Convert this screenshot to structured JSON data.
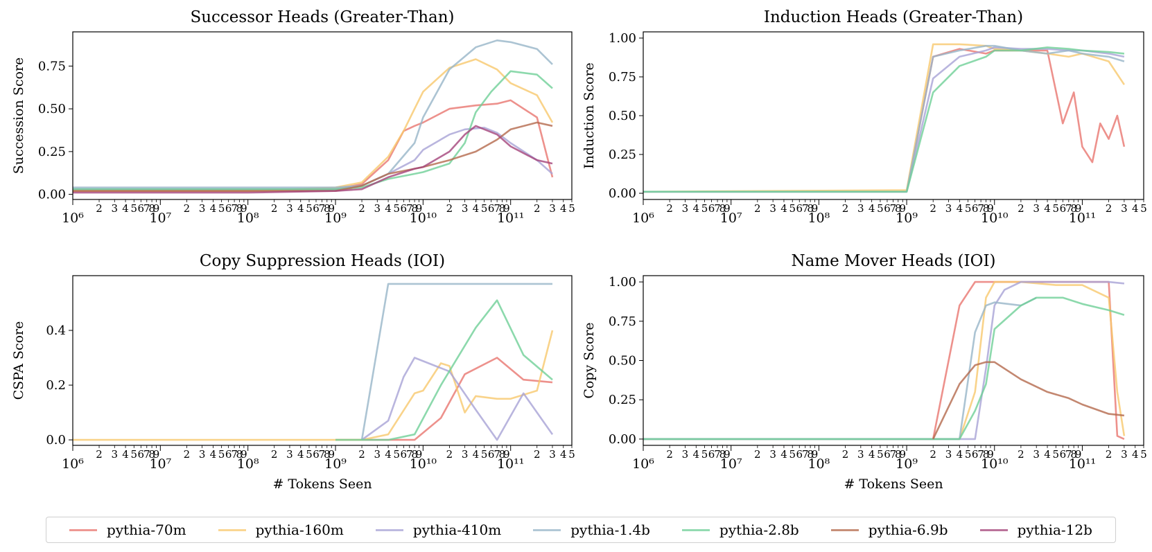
{
  "legend": {
    "items": [
      {
        "label": "pythia-70m",
        "color": "#e8766f"
      },
      {
        "label": "pythia-160m",
        "color": "#f8c86d"
      },
      {
        "label": "pythia-410m",
        "color": "#a7a3d6"
      },
      {
        "label": "pythia-1.4b",
        "color": "#97b5c8"
      },
      {
        "label": "pythia-2.8b",
        "color": "#6fcf97"
      },
      {
        "label": "pythia-6.9b",
        "color": "#b4694c"
      },
      {
        "label": "pythia-12b",
        "color": "#a4447a"
      }
    ]
  },
  "chart_data": [
    {
      "type": "line",
      "title": "Successor Heads (Greater-Than)",
      "xlabel": "",
      "ylabel": "Succession Score",
      "xscale": "log",
      "xlim": [
        1000000.0,
        500000000000.0
      ],
      "ylim": [
        -0.03,
        0.95
      ],
      "yticks": [
        0.0,
        0.25,
        0.5,
        0.75
      ],
      "ytick_labels": [
        "0.00",
        "0.25",
        "0.50",
        "0.75"
      ],
      "series": [
        {
          "name": "pythia-70m",
          "x": [
            1000000.0,
            100000000.0,
            1000000000.0,
            2000000000.0,
            4000000000.0,
            6000000000.0,
            8000000000.0,
            10000000000.0,
            20000000000.0,
            40000000000.0,
            70000000000.0,
            100000000000.0,
            200000000000.0,
            300000000000.0
          ],
          "y": [
            0.02,
            0.02,
            0.03,
            0.06,
            0.2,
            0.37,
            0.4,
            0.42,
            0.5,
            0.52,
            0.53,
            0.55,
            0.45,
            0.1
          ]
        },
        {
          "name": "pythia-160m",
          "x": [
            1000000.0,
            100000000.0,
            1000000000.0,
            2000000000.0,
            4000000000.0,
            6000000000.0,
            8000000000.0,
            10000000000.0,
            20000000000.0,
            40000000000.0,
            70000000000.0,
            100000000000.0,
            200000000000.0,
            300000000000.0
          ],
          "y": [
            0.02,
            0.02,
            0.04,
            0.07,
            0.22,
            0.37,
            0.5,
            0.6,
            0.74,
            0.79,
            0.73,
            0.65,
            0.58,
            0.42
          ]
        },
        {
          "name": "pythia-410m",
          "x": [
            1000000.0,
            100000000.0,
            1000000000.0,
            2000000000.0,
            4000000000.0,
            8000000000.0,
            10000000000.0,
            20000000000.0,
            30000000000.0,
            50000000000.0,
            70000000000.0,
            100000000000.0,
            200000000000.0,
            300000000000.0
          ],
          "y": [
            0.03,
            0.03,
            0.03,
            0.05,
            0.12,
            0.2,
            0.26,
            0.35,
            0.38,
            0.39,
            0.36,
            0.3,
            0.2,
            0.12
          ]
        },
        {
          "name": "pythia-1.4b",
          "x": [
            1000000.0,
            100000000.0,
            1000000000.0,
            2000000000.0,
            4000000000.0,
            8000000000.0,
            10000000000.0,
            20000000000.0,
            40000000000.0,
            70000000000.0,
            100000000000.0,
            200000000000.0,
            300000000000.0
          ],
          "y": [
            0.04,
            0.04,
            0.04,
            0.05,
            0.12,
            0.3,
            0.45,
            0.73,
            0.86,
            0.9,
            0.89,
            0.85,
            0.76
          ]
        },
        {
          "name": "pythia-2.8b",
          "x": [
            1000000.0,
            100000000.0,
            1000000000.0,
            2000000000.0,
            4000000000.0,
            8000000000.0,
            10000000000.0,
            20000000000.0,
            30000000000.0,
            40000000000.0,
            60000000000.0,
            100000000000.0,
            200000000000.0,
            300000000000.0
          ],
          "y": [
            0.03,
            0.03,
            0.03,
            0.04,
            0.09,
            0.12,
            0.13,
            0.18,
            0.3,
            0.48,
            0.6,
            0.72,
            0.7,
            0.62
          ]
        },
        {
          "name": "pythia-6.9b",
          "x": [
            1000000.0,
            100000000.0,
            1000000000.0,
            2000000000.0,
            4000000000.0,
            8000000000.0,
            10000000000.0,
            20000000000.0,
            40000000000.0,
            70000000000.0,
            100000000000.0,
            200000000000.0,
            300000000000.0
          ],
          "y": [
            0.02,
            0.02,
            0.02,
            0.05,
            0.12,
            0.15,
            0.16,
            0.2,
            0.25,
            0.32,
            0.38,
            0.42,
            0.4
          ]
        },
        {
          "name": "pythia-12b",
          "x": [
            1000000.0,
            100000000.0,
            1000000000.0,
            2000000000.0,
            4000000000.0,
            8000000000.0,
            10000000000.0,
            20000000000.0,
            30000000000.0,
            40000000000.0,
            70000000000.0,
            100000000000.0,
            200000000000.0,
            300000000000.0
          ],
          "y": [
            0.01,
            0.01,
            0.02,
            0.03,
            0.1,
            0.15,
            0.16,
            0.25,
            0.35,
            0.4,
            0.35,
            0.28,
            0.2,
            0.18
          ]
        }
      ]
    },
    {
      "type": "line",
      "title": "Induction Heads (Greater-Than)",
      "xlabel": "",
      "ylabel": "Induction Score",
      "xscale": "log",
      "xlim": [
        1000000.0,
        500000000000.0
      ],
      "ylim": [
        -0.04,
        1.04
      ],
      "yticks": [
        0.0,
        0.25,
        0.5,
        0.75,
        1.0
      ],
      "ytick_labels": [
        "0.00",
        "0.25",
        "0.50",
        "0.75",
        "1.00"
      ],
      "series": [
        {
          "name": "pythia-70m",
          "x": [
            1000000.0,
            1000000000.0,
            2000000000.0,
            4000000000.0,
            8000000000.0,
            10000000000.0,
            20000000000.0,
            40000000000.0,
            60000000000.0,
            80000000000.0,
            100000000000.0,
            130000000000.0,
            160000000000.0,
            200000000000.0,
            250000000000.0,
            300000000000.0
          ],
          "y": [
            0.01,
            0.01,
            0.88,
            0.93,
            0.9,
            0.92,
            0.92,
            0.92,
            0.45,
            0.65,
            0.3,
            0.2,
            0.45,
            0.35,
            0.5,
            0.3
          ]
        },
        {
          "name": "pythia-160m",
          "x": [
            1000000.0,
            1000000000.0,
            2000000000.0,
            4000000000.0,
            8000000000.0,
            10000000000.0,
            20000000000.0,
            40000000000.0,
            70000000000.0,
            100000000000.0,
            200000000000.0,
            300000000000.0
          ],
          "y": [
            0.01,
            0.02,
            0.96,
            0.96,
            0.95,
            0.93,
            0.92,
            0.9,
            0.88,
            0.9,
            0.85,
            0.7
          ]
        },
        {
          "name": "pythia-410m",
          "x": [
            1000000.0,
            1000000000.0,
            2000000000.0,
            4000000000.0,
            8000000000.0,
            10000000000.0,
            20000000000.0,
            40000000000.0,
            70000000000.0,
            100000000000.0,
            200000000000.0,
            300000000000.0
          ],
          "y": [
            0.01,
            0.01,
            0.74,
            0.88,
            0.92,
            0.94,
            0.93,
            0.93,
            0.92,
            0.92,
            0.9,
            0.88
          ]
        },
        {
          "name": "pythia-1.4b",
          "x": [
            1000000.0,
            1000000000.0,
            2000000000.0,
            4000000000.0,
            8000000000.0,
            10000000000.0,
            20000000000.0,
            40000000000.0,
            70000000000.0,
            100000000000.0,
            200000000000.0,
            300000000000.0
          ],
          "y": [
            0.01,
            0.01,
            0.88,
            0.92,
            0.95,
            0.95,
            0.92,
            0.9,
            0.92,
            0.9,
            0.88,
            0.85
          ]
        },
        {
          "name": "pythia-2.8b",
          "x": [
            1000000.0,
            1000000000.0,
            2000000000.0,
            4000000000.0,
            8000000000.0,
            10000000000.0,
            20000000000.0,
            40000000000.0,
            70000000000.0,
            100000000000.0,
            200000000000.0,
            300000000000.0
          ],
          "y": [
            0.01,
            0.01,
            0.65,
            0.82,
            0.88,
            0.92,
            0.92,
            0.94,
            0.93,
            0.92,
            0.91,
            0.9
          ]
        }
      ]
    },
    {
      "type": "line",
      "title": "Copy Suppression Heads (IOI)",
      "xlabel": "# Tokens Seen",
      "ylabel": "CSPA Score",
      "xscale": "log",
      "xlim": [
        1000000.0,
        500000000000.0
      ],
      "ylim": [
        -0.02,
        0.6
      ],
      "yticks": [
        0.0,
        0.2,
        0.4
      ],
      "ytick_labels": [
        "0.0",
        "0.2",
        "0.4"
      ],
      "series": [
        {
          "name": "pythia-70m",
          "x": [
            1000000000.0,
            2000000000.0,
            4000000000.0,
            8000000000.0,
            16000000000.0,
            30000000000.0,
            70000000000.0,
            140000000000.0,
            300000000000.0
          ],
          "y": [
            0.0,
            0.0,
            0.0,
            0.0,
            0.08,
            0.24,
            0.3,
            0.22,
            0.21
          ]
        },
        {
          "name": "pythia-160m",
          "x": [
            1000000.0,
            100000000.0,
            1000000000.0,
            2000000000.0,
            4000000000.0,
            8000000000.0,
            10000000000.0,
            16000000000.0,
            20000000000.0,
            30000000000.0,
            40000000000.0,
            70000000000.0,
            100000000000.0,
            200000000000.0,
            300000000000.0
          ],
          "y": [
            0.0,
            0.0,
            0.0,
            0.0,
            0.02,
            0.17,
            0.18,
            0.28,
            0.27,
            0.1,
            0.16,
            0.15,
            0.15,
            0.18,
            0.4
          ]
        },
        {
          "name": "pythia-410m",
          "x": [
            2000000000.0,
            4000000000.0,
            6000000000.0,
            8000000000.0,
            20000000000.0,
            40000000000.0,
            70000000000.0,
            140000000000.0,
            300000000000.0
          ],
          "y": [
            0.0,
            0.07,
            0.23,
            0.3,
            0.25,
            0.11,
            0.0,
            0.17,
            0.02
          ]
        },
        {
          "name": "pythia-1.4b",
          "x": [
            2000000000.0,
            4000000000.0,
            10000000000.0,
            100000000000.0,
            300000000000.0
          ],
          "y": [
            0.0,
            0.57,
            0.57,
            0.57,
            0.57
          ]
        },
        {
          "name": "pythia-2.8b",
          "x": [
            1000000000.0,
            2000000000.0,
            4000000000.0,
            8000000000.0,
            16000000000.0,
            40000000000.0,
            70000000000.0,
            140000000000.0,
            300000000000.0
          ],
          "y": [
            0.0,
            0.0,
            0.0,
            0.02,
            0.2,
            0.41,
            0.51,
            0.31,
            0.22
          ]
        }
      ]
    },
    {
      "type": "line",
      "title": "Name Mover Heads (IOI)",
      "xlabel": "# Tokens Seen",
      "ylabel": "Copy Score",
      "xscale": "log",
      "xlim": [
        1000000.0,
        500000000000.0
      ],
      "ylim": [
        -0.04,
        1.04
      ],
      "yticks": [
        0.0,
        0.25,
        0.5,
        0.75,
        1.0
      ],
      "ytick_labels": [
        "0.00",
        "0.25",
        "0.50",
        "0.75",
        "1.00"
      ],
      "series": [
        {
          "name": "pythia-70m",
          "x": [
            1000000.0,
            1000000000.0,
            2000000000.0,
            4000000000.0,
            6000000000.0,
            8000000000.0,
            100000000000.0,
            200000000000.0,
            250000000000.0,
            300000000000.0
          ],
          "y": [
            0.0,
            0.0,
            0.0,
            0.85,
            1.0,
            1.0,
            1.0,
            1.0,
            0.02,
            0.0
          ]
        },
        {
          "name": "pythia-160m",
          "x": [
            1000000.0,
            1000000000.0,
            4000000000.0,
            6000000000.0,
            8000000000.0,
            10000000000.0,
            20000000000.0,
            50000000000.0,
            100000000000.0,
            200000000000.0,
            250000000000.0,
            300000000000.0
          ],
          "y": [
            0.0,
            0.0,
            0.0,
            0.3,
            0.9,
            1.0,
            1.0,
            0.98,
            0.98,
            0.9,
            0.3,
            0.02
          ]
        },
        {
          "name": "pythia-410m",
          "x": [
            1000000.0,
            1000000000.0,
            6000000000.0,
            8000000000.0,
            10000000000.0,
            13000000000.0,
            20000000000.0,
            100000000000.0,
            200000000000.0,
            300000000000.0
          ],
          "y": [
            0.0,
            0.0,
            0.0,
            0.45,
            0.85,
            0.95,
            1.0,
            1.0,
            1.0,
            0.99
          ]
        },
        {
          "name": "pythia-1.4b",
          "x": [
            1000000.0,
            1000000000.0,
            4000000000.0,
            6000000000.0,
            8000000000.0,
            10000000000.0,
            20000000000.0,
            30000000000.0
          ],
          "y": [
            0.0,
            0.0,
            0.0,
            0.68,
            0.85,
            0.87,
            0.85,
            0.9
          ]
        },
        {
          "name": "pythia-2.8b",
          "x": [
            1000000.0,
            1000000000.0,
            4000000000.0,
            6000000000.0,
            8000000000.0,
            10000000000.0,
            20000000000.0,
            30000000000.0,
            60000000000.0,
            100000000000.0,
            200000000000.0,
            300000000000.0
          ],
          "y": [
            0.0,
            0.0,
            0.0,
            0.18,
            0.35,
            0.7,
            0.85,
            0.9,
            0.9,
            0.86,
            0.82,
            0.79
          ]
        },
        {
          "name": "pythia-6.9b",
          "x": [
            2000000000.0,
            4000000000.0,
            6000000000.0,
            8000000000.0,
            10000000000.0,
            20000000000.0,
            40000000000.0,
            70000000000.0,
            100000000000.0,
            200000000000.0,
            300000000000.0
          ],
          "y": [
            0.0,
            0.35,
            0.47,
            0.49,
            0.49,
            0.38,
            0.3,
            0.26,
            0.22,
            0.16,
            0.15
          ]
        }
      ]
    }
  ]
}
